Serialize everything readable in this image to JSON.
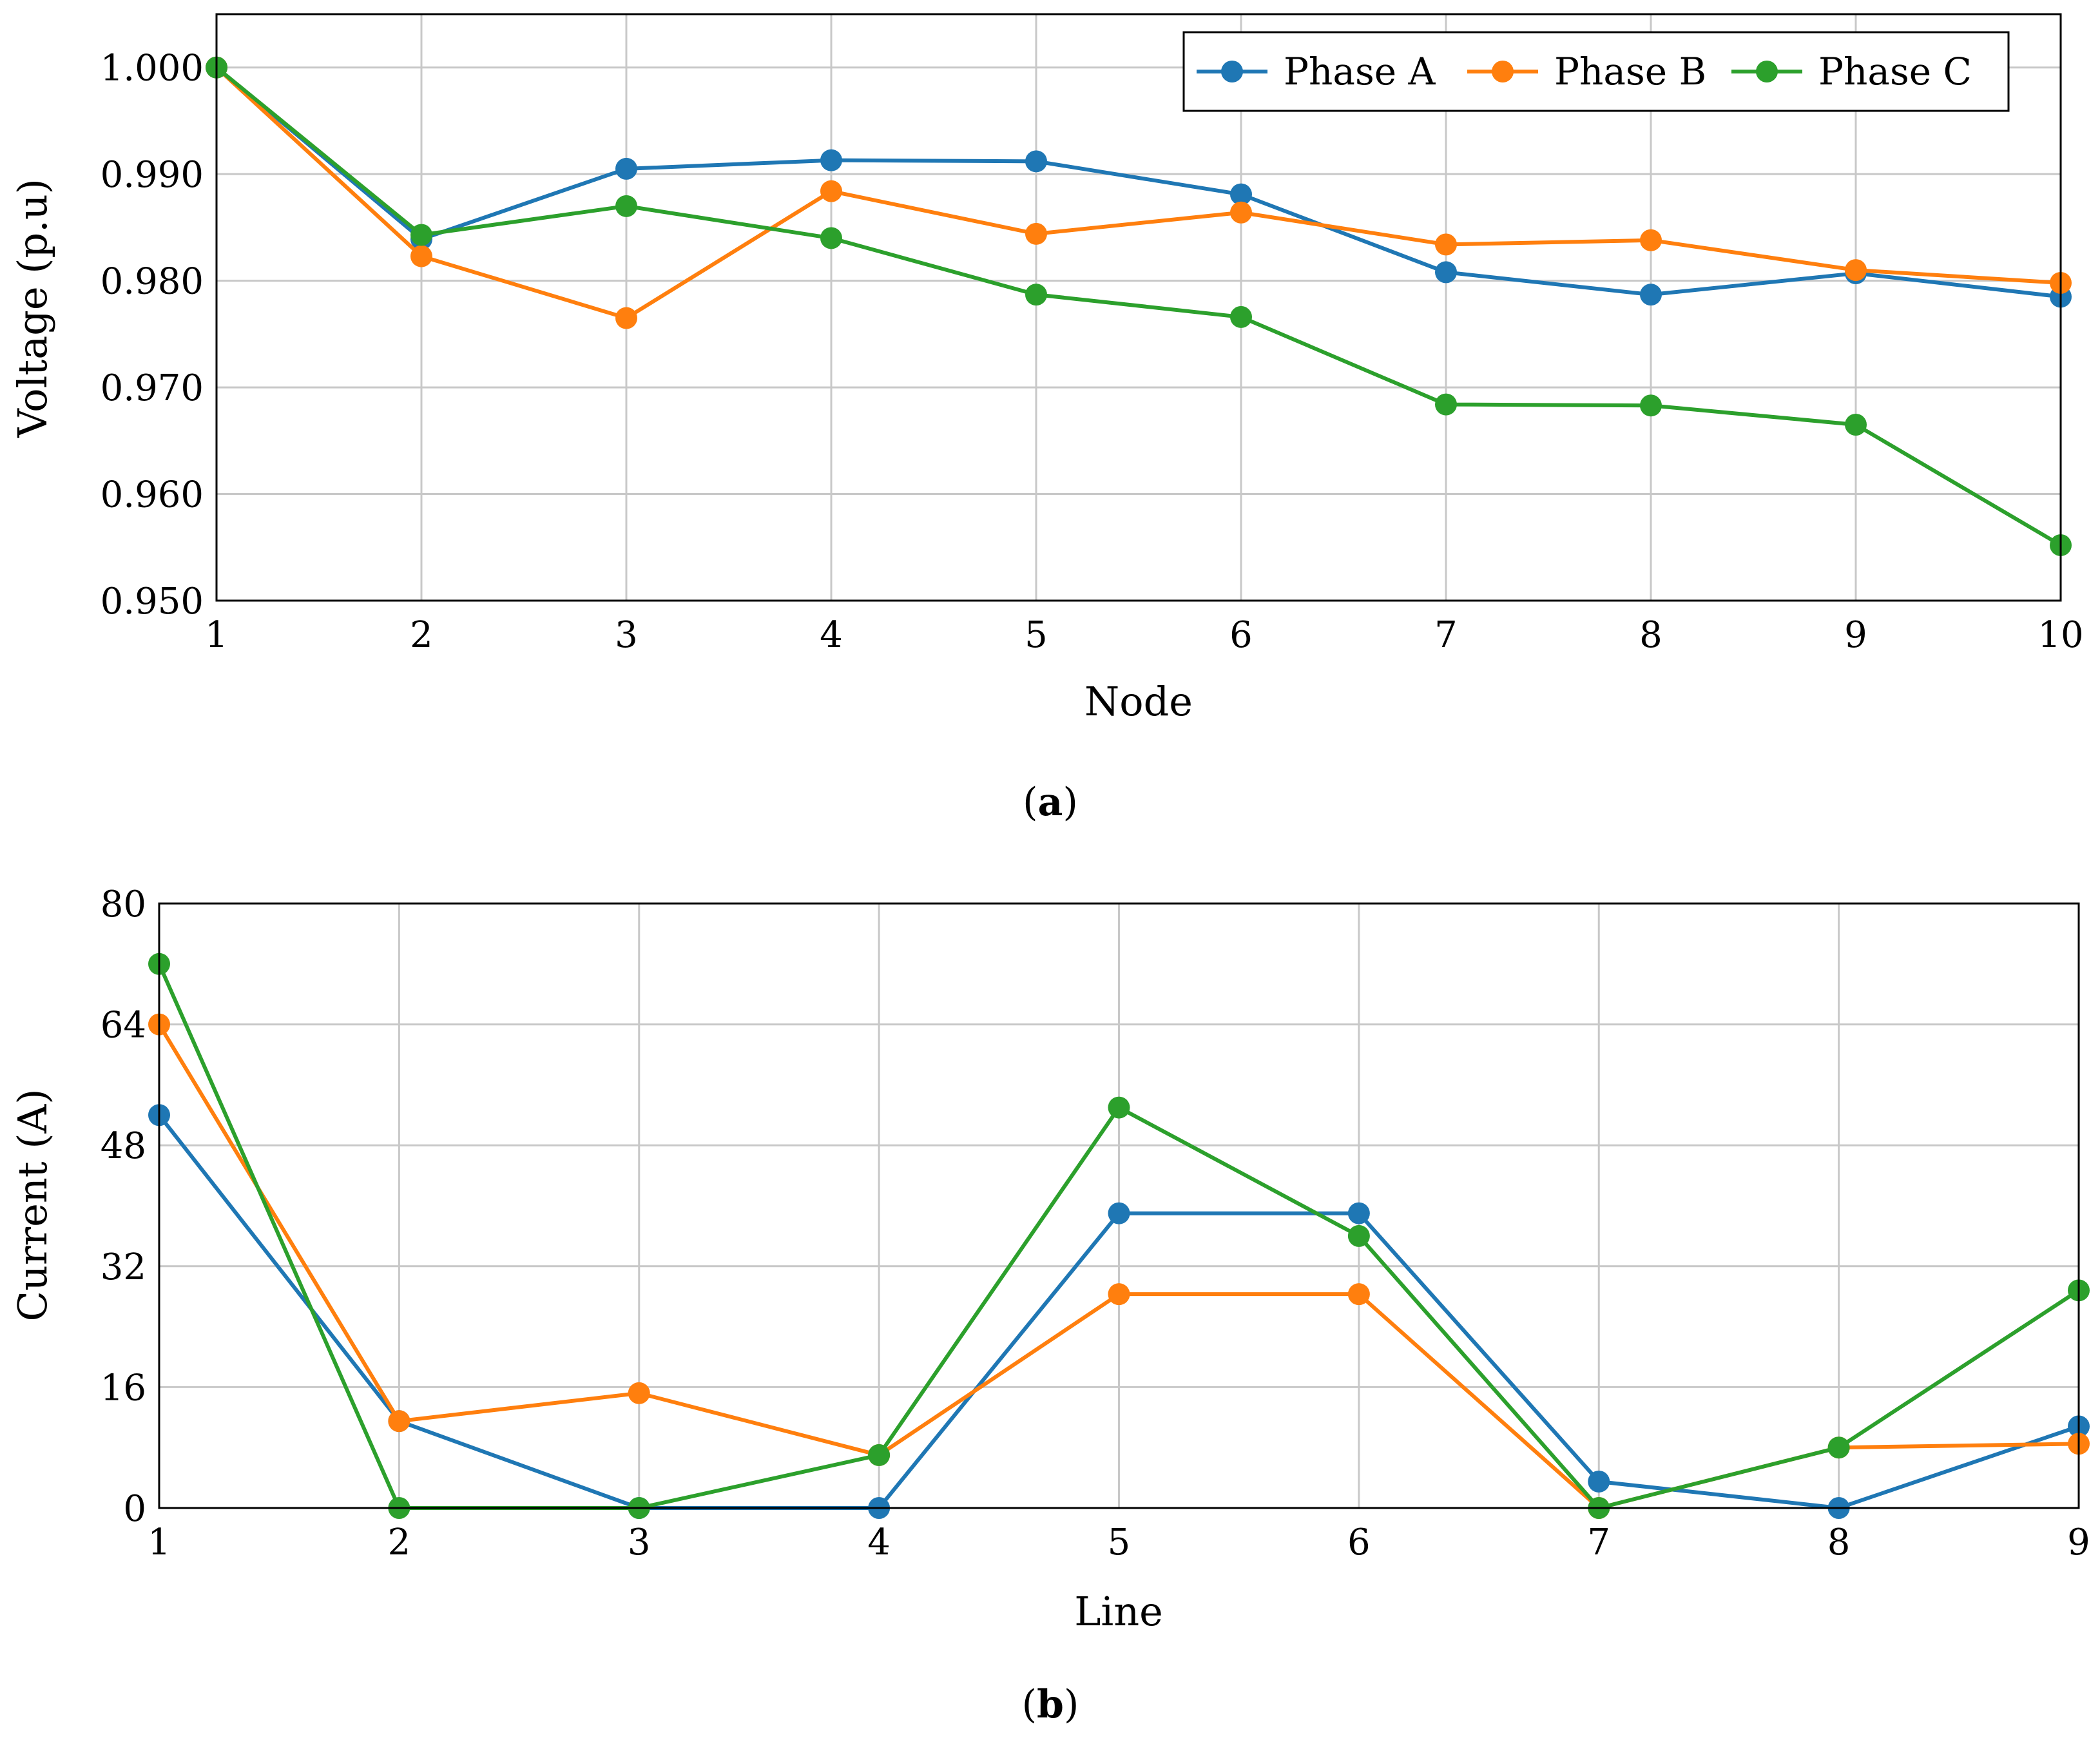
{
  "colors": {
    "phase_a": "#1f77b4",
    "phase_b": "#ff7f0e",
    "phase_c": "#2ca02c"
  },
  "chart_data": [
    {
      "type": "line",
      "caption_open": "(",
      "caption_letter": "a",
      "caption_close": ")",
      "xlabel": "Node",
      "ylabel": "Voltage (p.u)",
      "x": [
        1,
        2,
        3,
        4,
        5,
        6,
        7,
        8,
        9,
        10
      ],
      "xticks": [
        "1",
        "2",
        "3",
        "4",
        "5",
        "6",
        "7",
        "8",
        "9",
        "10"
      ],
      "ylim": [
        0.95,
        1.005
      ],
      "yticks": [
        0.95,
        0.96,
        0.97,
        0.98,
        0.99,
        1.0
      ],
      "ytick_labels": [
        "0.950",
        "0.960",
        "0.970",
        "0.980",
        "0.990",
        "1.000"
      ],
      "grid": true,
      "legend": "top-right",
      "series": [
        {
          "name": "Phase A",
          "color_key": "phase_a",
          "values": [
            1.0,
            0.9839,
            0.9905,
            0.9913,
            0.9912,
            0.9881,
            0.9808,
            0.9787,
            0.9807,
            0.9785
          ]
        },
        {
          "name": "Phase B",
          "color_key": "phase_b",
          "values": [
            1.0,
            0.9823,
            0.9765,
            0.9884,
            0.9844,
            0.9864,
            0.9834,
            0.9838,
            0.981,
            0.9798
          ]
        },
        {
          "name": "Phase C",
          "color_key": "phase_c",
          "values": [
            1.0,
            0.9843,
            0.987,
            0.984,
            0.9787,
            0.9766,
            0.9684,
            0.9683,
            0.9665,
            0.9552
          ]
        }
      ]
    },
    {
      "type": "line",
      "caption_open": "(",
      "caption_letter": "b",
      "caption_close": ")",
      "xlabel": "Line",
      "ylabel": "Current (A)",
      "x": [
        1,
        2,
        3,
        4,
        5,
        6,
        7,
        8,
        9
      ],
      "xticks": [
        "1",
        "2",
        "3",
        "4",
        "5",
        "6",
        "7",
        "8",
        "9"
      ],
      "ylim": [
        0,
        80
      ],
      "yticks": [
        0,
        16,
        32,
        48,
        64,
        80
      ],
      "ytick_labels": [
        "0",
        "16",
        "32",
        "48",
        "64",
        "80"
      ],
      "grid": true,
      "series": [
        {
          "name": "Phase A",
          "color_key": "phase_a",
          "values": [
            52.0,
            11.5,
            0.0,
            0.0,
            39.0,
            39.0,
            3.5,
            0.0,
            10.8
          ]
        },
        {
          "name": "Phase B",
          "color_key": "phase_b",
          "values": [
            64.0,
            11.5,
            15.2,
            7.0,
            28.3,
            28.3,
            0.0,
            8.0,
            8.5
          ]
        },
        {
          "name": "Phase C",
          "color_key": "phase_c",
          "values": [
            72.0,
            0.0,
            0.0,
            7.0,
            53.0,
            36.0,
            0.0,
            8.0,
            28.8
          ]
        }
      ]
    }
  ]
}
